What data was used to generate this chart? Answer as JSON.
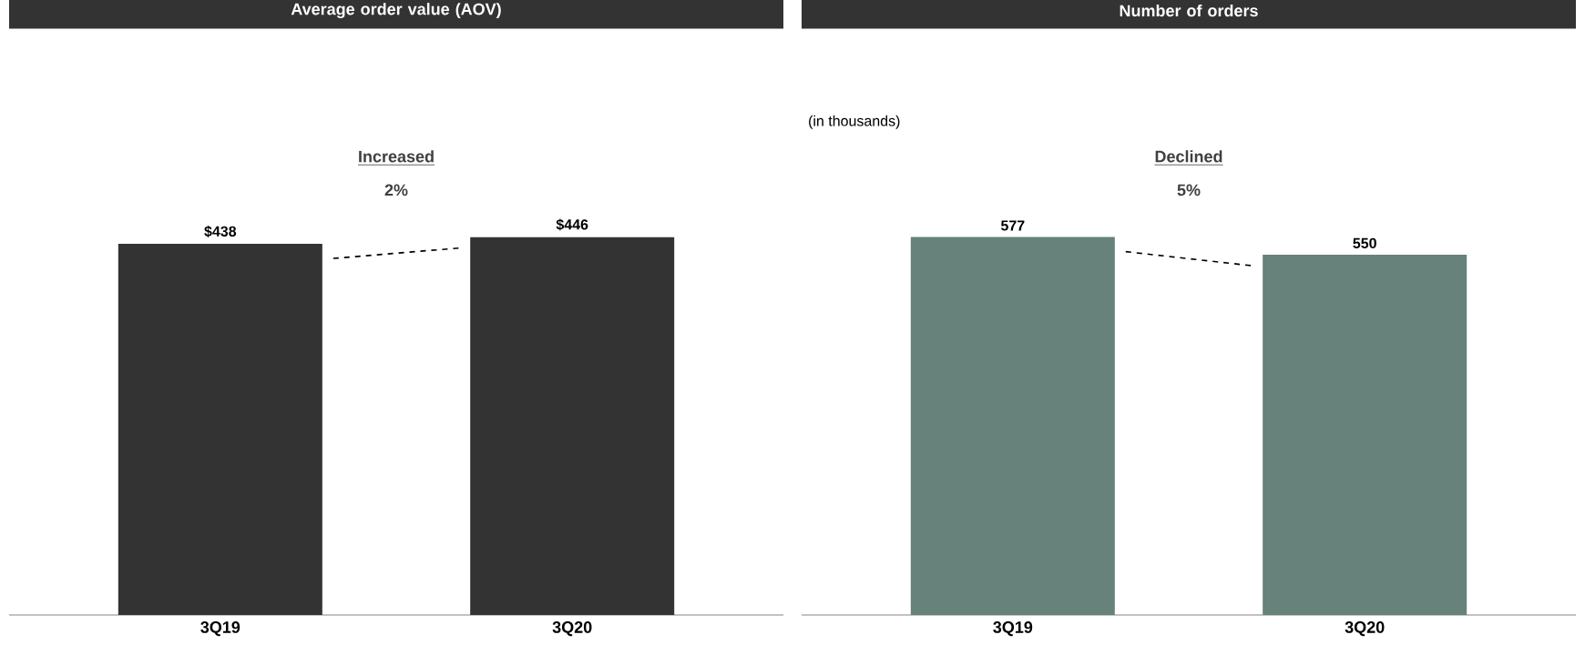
{
  "chart_data": [
    {
      "type": "bar",
      "title": "Average order value (AOV)",
      "categories": [
        "3Q19",
        "3Q20"
      ],
      "values": [
        438,
        446
      ],
      "value_labels": [
        "$438",
        "$446"
      ],
      "color": "#333333",
      "annotations": [
        "Increased",
        "2%"
      ]
    },
    {
      "type": "bar",
      "title": "Number of orders",
      "subtitle": "(in thousands)",
      "categories": [
        "3Q19",
        "3Q20"
      ],
      "values": [
        577,
        550
      ],
      "value_labels": [
        "577",
        "550"
      ],
      "color": "#66827a",
      "annotations": [
        "Declined",
        "5%"
      ]
    }
  ]
}
